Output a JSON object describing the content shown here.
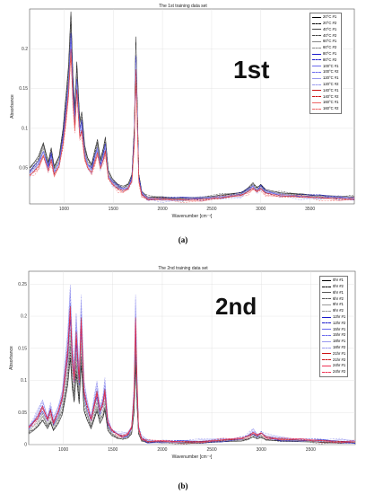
{
  "panels": [
    {
      "id": "a",
      "title": "The 1st training data set",
      "caption": "(a)",
      "overlay_label": "1st",
      "ylabel": "Absorbance",
      "xlabel": "Wavenumber [cm⁻¹]"
    },
    {
      "id": "b",
      "title": "The 2nd training data set",
      "caption": "(b)",
      "overlay_label": "2nd",
      "ylabel": "Absorbance",
      "xlabel": "Wavenumber [cm⁻¹]"
    }
  ],
  "chart_data": [
    {
      "type": "line",
      "title": "The 1st training data set",
      "xlabel": "Wavenumber [cm⁻¹]",
      "ylabel": "Absorbance",
      "xlim": [
        650,
        3950
      ],
      "ylim": [
        0.005,
        0.25
      ],
      "xticks": [
        1000,
        1500,
        2000,
        2500,
        3000,
        3500
      ],
      "yticks": [
        0.05,
        0.1,
        0.15,
        0.2
      ],
      "ytick_labels": [
        "0.05",
        "0.1",
        "0.15",
        "0.2"
      ],
      "grid": true,
      "legend_position": "top-right",
      "series": [
        {
          "name": "20°C #1",
          "color": "#000000",
          "dash": "solid",
          "scale": 1.05
        },
        {
          "name": "20°C #2",
          "color": "#000000",
          "dash": "dash",
          "scale": 1.02
        },
        {
          "name": "40°C #1",
          "color": "#444444",
          "dash": "solid",
          "scale": 1.0
        },
        {
          "name": "40°C #2",
          "color": "#444444",
          "dash": "dash",
          "scale": 0.98
        },
        {
          "name": "60°C #1",
          "color": "#888888",
          "dash": "solid",
          "scale": 0.97
        },
        {
          "name": "60°C #2",
          "color": "#888888",
          "dash": "dash",
          "scale": 0.95
        },
        {
          "name": "80°C #1",
          "color": "#1a1acc",
          "dash": "solid",
          "scale": 0.94
        },
        {
          "name": "80°C #2",
          "color": "#1a1acc",
          "dash": "dash",
          "scale": 0.92
        },
        {
          "name": "100°C #1",
          "color": "#6a6aee",
          "dash": "solid",
          "scale": 0.91
        },
        {
          "name": "100°C #2",
          "color": "#6a6aee",
          "dash": "dash",
          "scale": 0.89
        },
        {
          "name": "120°C #1",
          "color": "#9999ee",
          "dash": "solid",
          "scale": 0.88
        },
        {
          "name": "120°C #2",
          "color": "#9999ee",
          "dash": "dash",
          "scale": 0.86
        },
        {
          "name": "140°C #1",
          "color": "#cc1111",
          "dash": "solid",
          "scale": 0.85
        },
        {
          "name": "140°C #2",
          "color": "#cc1111",
          "dash": "dash",
          "scale": 0.83
        },
        {
          "name": "160°C #1",
          "color": "#ee6666",
          "dash": "solid",
          "scale": 0.82
        },
        {
          "name": "160°C #2",
          "color": "#ee6666",
          "dash": "dash",
          "scale": 0.8
        }
      ],
      "profile": {
        "x": [
          650,
          700,
          740,
          790,
          840,
          870,
          900,
          950,
          990,
          1020,
          1045,
          1070,
          1090,
          1110,
          1130,
          1160,
          1180,
          1210,
          1240,
          1280,
          1310,
          1340,
          1370,
          1400,
          1420,
          1450,
          1490,
          1550,
          1600,
          1650,
          1690,
          1715,
          1730,
          1745,
          1760,
          1790,
          1850,
          2000,
          2200,
          2400,
          2600,
          2800,
          2870,
          2920,
          2960,
          3000,
          3050,
          3200,
          3400,
          3600,
          3800,
          3950
        ],
        "y": [
          0.048,
          0.055,
          0.062,
          0.078,
          0.055,
          0.072,
          0.05,
          0.062,
          0.095,
          0.135,
          0.17,
          0.235,
          0.16,
          0.12,
          0.175,
          0.105,
          0.115,
          0.075,
          0.06,
          0.052,
          0.068,
          0.082,
          0.058,
          0.072,
          0.085,
          0.045,
          0.035,
          0.028,
          0.026,
          0.028,
          0.04,
          0.1,
          0.205,
          0.12,
          0.04,
          0.02,
          0.013,
          0.012,
          0.012,
          0.013,
          0.015,
          0.018,
          0.024,
          0.03,
          0.024,
          0.028,
          0.022,
          0.018,
          0.016,
          0.015,
          0.014,
          0.013
        ]
      }
    },
    {
      "type": "line",
      "title": "The 2nd training data set",
      "xlabel": "Wavenumber [cm⁻¹]",
      "ylabel": "Absorbance",
      "xlim": [
        650,
        3950
      ],
      "ylim": [
        0,
        0.27
      ],
      "xticks": [
        1000,
        1500,
        2000,
        2500,
        3000,
        3500
      ],
      "yticks": [
        0,
        0.05,
        0.1,
        0.15,
        0.2,
        0.25
      ],
      "ytick_labels": [
        "0",
        "0.05",
        "0.1",
        "0.15",
        "0.2",
        "0.25"
      ],
      "grid": true,
      "legend_position": "top-right",
      "series": [
        {
          "name": "0hr #1",
          "color": "#000000",
          "dash": "solid",
          "scale": 0.55
        },
        {
          "name": "0hr #2",
          "color": "#000000",
          "dash": "dash",
          "scale": 0.58
        },
        {
          "name": "6hr #1",
          "color": "#555555",
          "dash": "solid",
          "scale": 0.62
        },
        {
          "name": "6hr #2",
          "color": "#555555",
          "dash": "dash",
          "scale": 0.66
        },
        {
          "name": "9hr #1",
          "color": "#999999",
          "dash": "solid",
          "scale": 0.7
        },
        {
          "name": "9hr #2",
          "color": "#999999",
          "dash": "dash",
          "scale": 0.74
        },
        {
          "name": "12hr #1",
          "color": "#1a1acc",
          "dash": "solid",
          "scale": 0.8
        },
        {
          "name": "12hr #2",
          "color": "#1a1acc",
          "dash": "dash",
          "scale": 0.85
        },
        {
          "name": "15hr #1",
          "color": "#6a6aee",
          "dash": "solid",
          "scale": 0.9
        },
        {
          "name": "15hr #2",
          "color": "#6a6aee",
          "dash": "dash",
          "scale": 0.95
        },
        {
          "name": "18hr #1",
          "color": "#9999ee",
          "dash": "solid",
          "scale": 1.0
        },
        {
          "name": "18hr #2",
          "color": "#9999ee",
          "dash": "dash",
          "scale": 1.03
        },
        {
          "name": "21hr #1",
          "color": "#cc1111",
          "dash": "solid",
          "scale": 0.88
        },
        {
          "name": "21hr #2",
          "color": "#cc1111",
          "dash": "dash",
          "scale": 0.84
        },
        {
          "name": "24hr #1",
          "color": "#ee3355",
          "dash": "solid",
          "scale": 0.86
        },
        {
          "name": "24hr #2",
          "color": "#ee3355",
          "dash": "dash",
          "scale": 0.82
        }
      ],
      "profile": {
        "x": [
          650,
          700,
          740,
          790,
          840,
          870,
          900,
          950,
          990,
          1020,
          1045,
          1070,
          1090,
          1110,
          1130,
          1160,
          1180,
          1210,
          1240,
          1280,
          1310,
          1340,
          1370,
          1400,
          1420,
          1450,
          1490,
          1550,
          1600,
          1650,
          1690,
          1715,
          1730,
          1745,
          1760,
          1790,
          1850,
          2000,
          2200,
          2400,
          2600,
          2800,
          2870,
          2920,
          2960,
          3000,
          3050,
          3200,
          3400,
          3600,
          3800,
          3950
        ],
        "y": [
          0.03,
          0.04,
          0.05,
          0.068,
          0.045,
          0.062,
          0.04,
          0.06,
          0.085,
          0.13,
          0.17,
          0.245,
          0.16,
          0.12,
          0.2,
          0.115,
          0.225,
          0.095,
          0.07,
          0.045,
          0.07,
          0.095,
          0.06,
          0.075,
          0.098,
          0.04,
          0.025,
          0.018,
          0.016,
          0.018,
          0.03,
          0.09,
          0.225,
          0.11,
          0.03,
          0.012,
          0.006,
          0.005,
          0.005,
          0.006,
          0.008,
          0.01,
          0.016,
          0.022,
          0.016,
          0.02,
          0.014,
          0.01,
          0.008,
          0.007,
          0.006,
          0.005
        ]
      }
    }
  ]
}
